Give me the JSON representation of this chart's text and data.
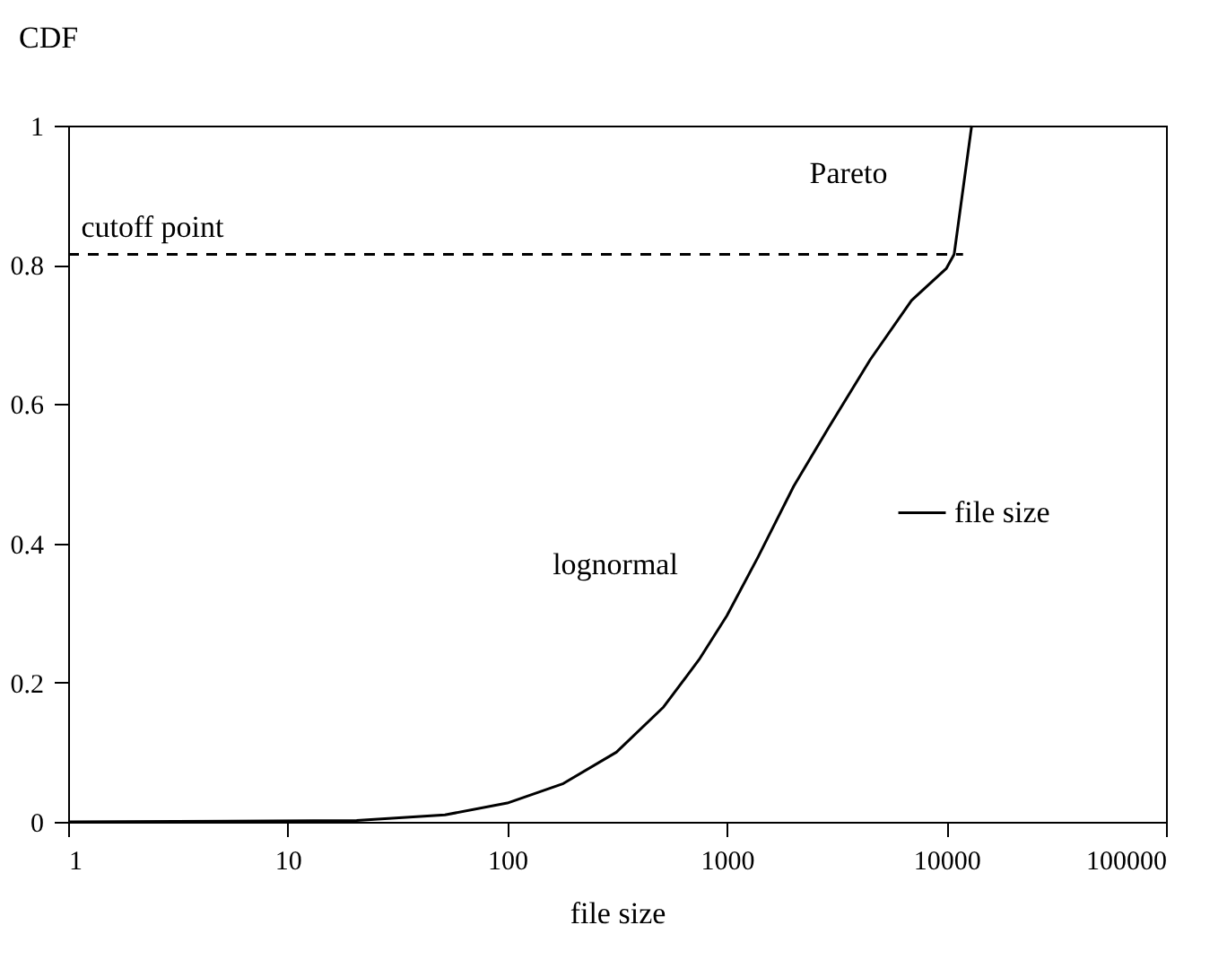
{
  "chart_data": {
    "type": "line",
    "xlabel": "file size",
    "ylabel": "CDF",
    "xlim": [
      1,
      100000
    ],
    "xticks": [
      1,
      10,
      100,
      1000,
      10000,
      100000
    ],
    "ylim": [
      0,
      1
    ],
    "yticks": [
      0,
      0.2,
      0.4,
      0.6,
      0.8,
      1
    ],
    "log": "x",
    "grid": false,
    "legend": "right",
    "marker": "none",
    "series": [
      {
        "name": "file size",
        "color": "#000000",
        "line_style": "solid",
        "x": [
          1,
          20.6,
          52,
          100,
          180,
          314,
          515,
          747,
          1000,
          1390,
          2015,
          2917,
          4500,
          6935,
          10000,
          10840,
          13030
        ],
        "values": [
          0,
          0.002,
          0.01,
          0.027,
          0.055,
          0.1,
          0.165,
          0.233,
          0.296,
          0.381,
          0.482,
          0.567,
          0.664,
          0.749,
          0.795,
          0.815,
          1.0
        ]
      },
      {
        "color": "#000000",
        "line_style": "dashed",
        "x": [
          1,
          11900
        ],
        "values": [
          0.815,
          0.815
        ]
      }
    ],
    "annotations": [
      "cutoff point",
      "Pareto",
      "lognormal"
    ]
  }
}
